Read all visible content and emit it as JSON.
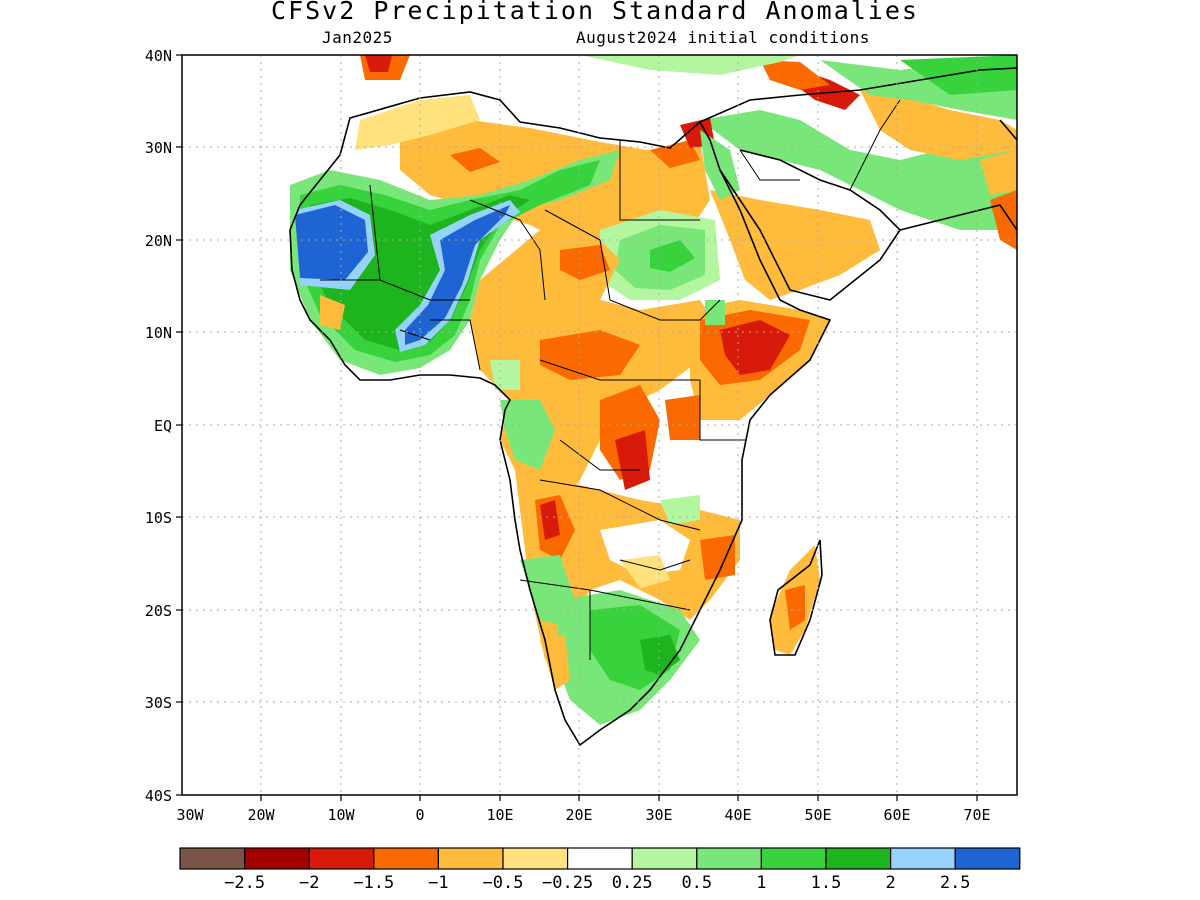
{
  "title": "CFSv2 Precipitation Standard Anomalies",
  "subtitle_left": "Jan2025",
  "subtitle_right": "August2024 initial conditions",
  "y_ticks": [
    "40N",
    "30N",
    "20N",
    "10N",
    "EQ",
    "10S",
    "20S",
    "30S",
    "40S"
  ],
  "x_ticks": [
    "30W",
    "20W",
    "10W",
    "0",
    "10E",
    "20E",
    "30E",
    "40E",
    "50E",
    "60E",
    "70E"
  ],
  "colorbar": {
    "colors": [
      "#7a5448",
      "#a50000",
      "#d81a0a",
      "#fa6a00",
      "#ffbb3c",
      "#ffe27d",
      "#ffffff",
      "#b4f5a0",
      "#78e678",
      "#37d23c",
      "#1eb41e",
      "#96d2fa",
      "#1e64d2"
    ],
    "labels": [
      "−2.5",
      "−2",
      "−1.5",
      "−1",
      "−0.5",
      "−0.25",
      "0.25",
      "0.5",
      "1",
      "1.5",
      "2",
      "2.5"
    ]
  },
  "map": {
    "region": "Africa",
    "lon_range": [
      -30,
      75
    ],
    "lat_range": [
      -40,
      40
    ],
    "anomaly_regions": [
      {
        "name": "West Sahel / Mauritania",
        "category": "2.5"
      },
      {
        "name": "Guinea coast",
        "category": "2.5"
      },
      {
        "name": "Central Sahara",
        "category": "1.5"
      },
      {
        "name": "Sudan",
        "category": "1"
      },
      {
        "name": "Ethiopia / Somalia",
        "category": "-1.5"
      },
      {
        "name": "Chad / CAR",
        "category": "-1"
      },
      {
        "name": "Congo Basin",
        "category": "-1"
      },
      {
        "name": "Tanzania / Mozambique",
        "category": "-0.5"
      },
      {
        "name": "Southern Africa",
        "category": "1"
      },
      {
        "name": "Madagascar",
        "category": "-1"
      },
      {
        "name": "Arabian Peninsula",
        "category": "-0.5"
      },
      {
        "name": "Iran",
        "category": "1"
      },
      {
        "name": "Libya / Egypt",
        "category": "-0.5"
      }
    ]
  }
}
